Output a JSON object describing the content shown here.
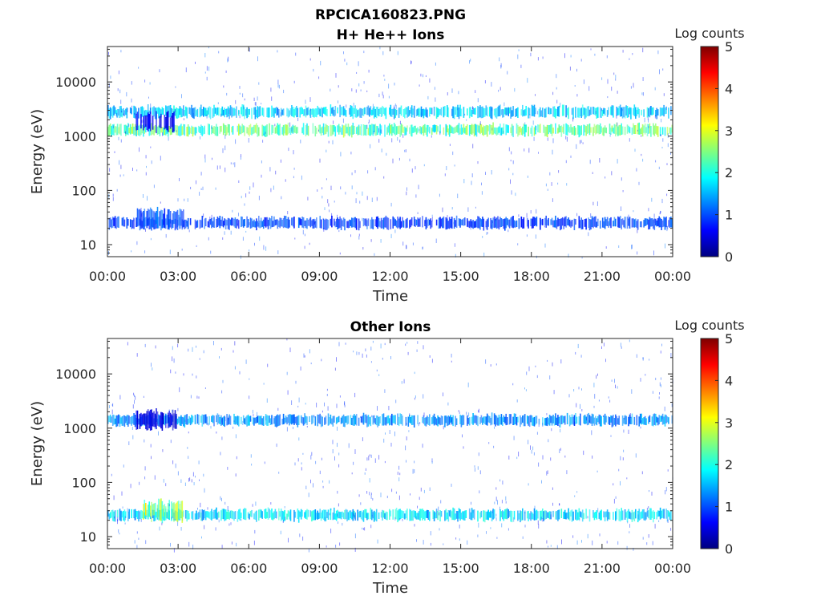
{
  "figure": {
    "main_title": "RPCICA160823.PNG"
  },
  "chart_data": [
    {
      "type": "heatmap",
      "title": "H+ He++ Ions",
      "xlabel": "Time",
      "ylabel": "Energy (eV)",
      "y_scale": "log",
      "ylim": [
        6,
        45000
      ],
      "xlim": [
        "00:00",
        "24:00"
      ],
      "x_ticks": [
        "00:00",
        "03:00",
        "06:00",
        "09:00",
        "12:00",
        "15:00",
        "18:00",
        "21:00",
        "00:00"
      ],
      "y_ticks": [
        "10",
        "100",
        "1000",
        "10000"
      ],
      "colorbar": {
        "label": "Log counts",
        "range": [
          0,
          5
        ],
        "ticks": [
          "0",
          "1",
          "2",
          "3",
          "4",
          "5"
        ],
        "colormap": "jet"
      },
      "bands": [
        {
          "name": "upper_band",
          "energy_eV": 1300,
          "level_log_counts": 2.4,
          "time_h": [
            0.0,
            24.0
          ]
        },
        {
          "name": "upper_band_secondary",
          "energy_eV": 2800,
          "level_log_counts": 1.7,
          "time_h": [
            0.0,
            24.0
          ]
        },
        {
          "name": "low_band",
          "energy_eV": 25,
          "level_log_counts": 1.0,
          "time_h": [
            0.0,
            24.0
          ]
        },
        {
          "name": "burst_high",
          "energy_eV": 1800,
          "level_log_counts": 0.6,
          "time_h": [
            1.2,
            2.8
          ]
        },
        {
          "name": "burst_low",
          "energy_eV": 30,
          "level_log_counts": 1.1,
          "time_h": [
            1.2,
            3.2
          ]
        }
      ]
    },
    {
      "type": "heatmap",
      "title": "Other Ions",
      "xlabel": "Time",
      "ylabel": "Energy (eV)",
      "y_scale": "log",
      "ylim": [
        6,
        45000
      ],
      "xlim": [
        "00:00",
        "24:00"
      ],
      "x_ticks": [
        "00:00",
        "03:00",
        "06:00",
        "09:00",
        "12:00",
        "15:00",
        "18:00",
        "21:00",
        "00:00"
      ],
      "y_ticks": [
        "10",
        "100",
        "1000",
        "10000"
      ],
      "colorbar": {
        "label": "Log counts",
        "range": [
          0,
          5
        ],
        "ticks": [
          "0",
          "1",
          "2",
          "3",
          "4",
          "5"
        ],
        "colormap": "jet"
      },
      "bands": [
        {
          "name": "upper_band",
          "energy_eV": 1400,
          "level_log_counts": 1.4,
          "time_h": [
            0.0,
            24.0
          ]
        },
        {
          "name": "burst_high",
          "energy_eV": 1400,
          "level_log_counts": 0.5,
          "time_h": [
            1.2,
            2.9
          ]
        },
        {
          "name": "low_band",
          "energy_eV": 25,
          "level_log_counts": 1.8,
          "time_h": [
            0.0,
            24.0
          ]
        },
        {
          "name": "burst_low",
          "energy_eV": 30,
          "level_log_counts": 2.7,
          "time_h": [
            1.5,
            3.2
          ]
        }
      ]
    }
  ]
}
